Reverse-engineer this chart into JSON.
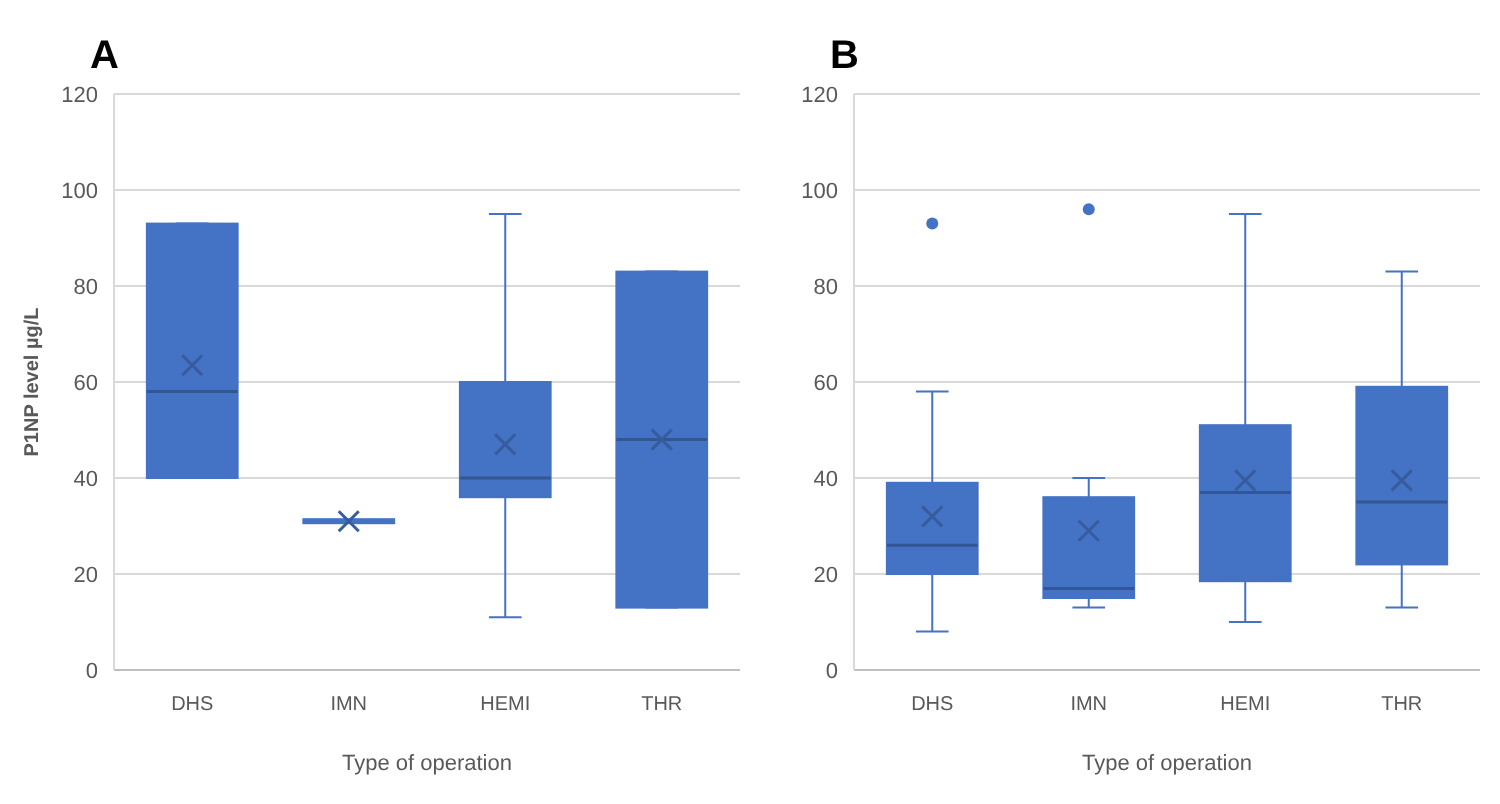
{
  "chart_data": [
    {
      "type": "box",
      "title": "A",
      "categories": [
        "DHS",
        "IMN",
        "HEMI",
        "THR"
      ],
      "xlabel": "Type of operation",
      "ylabel": "P1NP level  µg/L",
      "ylim": [
        0,
        120
      ],
      "yticks": [
        0,
        20,
        40,
        60,
        80,
        100,
        120
      ],
      "grid": "y",
      "color": "#4472c4",
      "boxes": [
        {
          "low": 40,
          "q1": 40,
          "median": 58,
          "q3": 93,
          "high": 93,
          "mean": 63.5
        },
        {
          "low": 31,
          "q1": 31,
          "median": 31,
          "q3": 31,
          "high": 31,
          "mean": 31
        },
        {
          "low": 11,
          "q1": 36,
          "median": 40,
          "q3": 60,
          "high": 95,
          "mean": 47
        },
        {
          "low": 13,
          "q1": 13,
          "median": 48,
          "q3": 83,
          "high": 83,
          "mean": 48
        }
      ]
    },
    {
      "type": "box",
      "title": "B",
      "categories": [
        "DHS",
        "IMN",
        "HEMI",
        "THR"
      ],
      "xlabel": "Type of operation",
      "ylim": [
        0,
        120
      ],
      "yticks": [
        0,
        20,
        40,
        60,
        80,
        100,
        120
      ],
      "grid": "y",
      "color": "#4472c4",
      "boxes": [
        {
          "low": 8,
          "q1": 20,
          "median": 26,
          "q3": 39,
          "high": 58,
          "mean": 32,
          "outliers": [
            93
          ]
        },
        {
          "low": 13,
          "q1": 15,
          "median": 17,
          "q3": 36,
          "high": 40,
          "mean": 29,
          "outliers": [
            96
          ]
        },
        {
          "low": 10,
          "q1": 18.5,
          "median": 37,
          "q3": 51,
          "high": 95,
          "mean": 39.5
        },
        {
          "low": 13,
          "q1": 22,
          "median": 35,
          "q3": 59,
          "high": 83,
          "mean": 39.5
        }
      ]
    }
  ]
}
